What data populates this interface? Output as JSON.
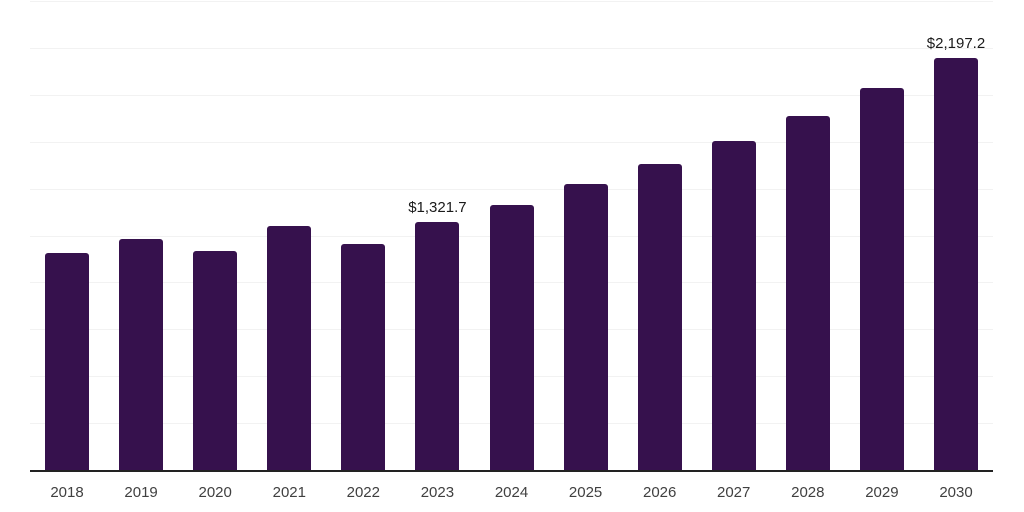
{
  "chart_data": {
    "type": "bar",
    "title": "",
    "xlabel": "",
    "ylabel": "",
    "categories": [
      "2018",
      "2019",
      "2020",
      "2021",
      "2022",
      "2023",
      "2024",
      "2025",
      "2026",
      "2027",
      "2028",
      "2029",
      "2030"
    ],
    "values": [
      1157.3,
      1234.2,
      1166.4,
      1301.4,
      1207.5,
      1321.7,
      1412.0,
      1522.4,
      1629.2,
      1752.0,
      1888.6,
      2038.1,
      2197.2
    ],
    "value_labels": [
      "",
      "",
      "",
      "",
      "",
      "$1,321.7",
      "",
      "",
      "",
      "",
      "",
      "",
      "$2,197.2"
    ],
    "ylim": [
      0,
      2500
    ],
    "gridline_step": 250,
    "grid": "horizontal",
    "legend_position": "none",
    "y_axis_tick_labels_visible": false,
    "colors": {
      "bar": "#36114d",
      "axis": "#222222",
      "gridline": "#f2f2f2",
      "tick_label": "#404040",
      "value_label": "#1a1a1a",
      "background": "#ffffff"
    }
  }
}
